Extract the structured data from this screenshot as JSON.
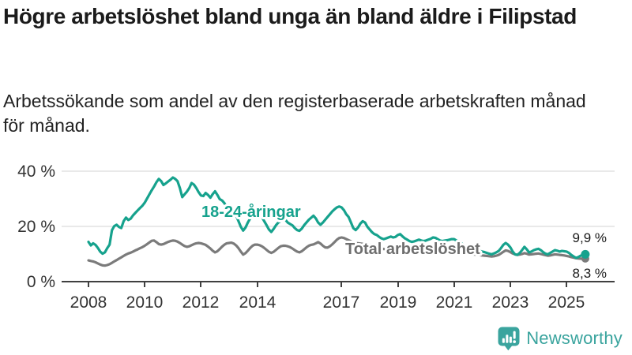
{
  "header": {
    "title": "Högre arbetslöshet bland unga än bland äldre i Filipstad",
    "subtitle": "Arbetssökande som andel av den registerbaserade arbetskraften månad för månad."
  },
  "chart_data": {
    "type": "line",
    "title": "Högre arbetslöshet bland unga än bland äldre i Filipstad",
    "xlabel": "",
    "ylabel": "",
    "x_unit": "month",
    "x_range": [
      "2008-01",
      "2025-09"
    ],
    "points_per_year": 12,
    "x_ticks": [
      "2008",
      "2010",
      "2012",
      "2014",
      "2017",
      "2019",
      "2021",
      "2023",
      "2025"
    ],
    "y_ticks": [
      {
        "value": 0,
        "label": "0 %"
      },
      {
        "value": 20,
        "label": "20 %"
      },
      {
        "value": 40,
        "label": "40 %"
      }
    ],
    "ylim": [
      0,
      42
    ],
    "grid": "horizontal",
    "gridline_color": "#e2e2e2",
    "axis_color": "#404040",
    "series": [
      {
        "name": "18-24-åringar",
        "color": "#16a28d",
        "end_label": "9,9 %",
        "end_value": 9.9,
        "values": [
          14.4,
          13.1,
          13.9,
          13.3,
          12.2,
          10.9,
          10.1,
          10.6,
          12.1,
          13.4,
          18.6,
          20.1,
          20.6,
          19.8,
          19.4,
          21.9,
          23.2,
          22.3,
          22.8,
          24.0,
          24.9,
          25.8,
          26.7,
          27.5,
          28.6,
          30.1,
          31.6,
          33.1,
          34.5,
          36.0,
          37.2,
          36.4,
          35.0,
          35.6,
          36.3,
          36.9,
          37.7,
          37.2,
          36.4,
          33.9,
          30.6,
          31.6,
          32.6,
          33.9,
          35.7,
          35.1,
          33.9,
          32.4,
          31.2,
          31.0,
          32.1,
          31.4,
          30.4,
          31.7,
          32.7,
          31.4,
          29.9,
          29.4,
          28.4,
          27.1,
          27.4,
          26.4,
          25.4,
          23.9,
          21.9,
          19.9,
          18.5,
          19.6,
          21.4,
          22.9,
          23.9,
          24.4,
          24.9,
          24.4,
          23.4,
          21.9,
          20.4,
          18.9,
          18.0,
          19.1,
          20.4,
          21.4,
          21.9,
          22.2,
          22.4,
          21.4,
          20.9,
          20.4,
          19.4,
          18.7,
          18.4,
          19.2,
          20.4,
          21.4,
          22.4,
          23.1,
          23.9,
          22.9,
          21.4,
          20.6,
          21.4,
          22.4,
          23.4,
          24.4,
          25.4,
          26.2,
          26.9,
          27.2,
          26.9,
          25.9,
          24.4,
          23.4,
          21.4,
          19.4,
          18.7,
          19.6,
          21.0,
          21.9,
          21.4,
          19.9,
          18.9,
          17.9,
          17.2,
          16.9,
          16.2,
          15.7,
          15.4,
          15.7,
          16.0,
          16.3,
          16.0,
          16.2,
          16.9,
          17.2,
          16.4,
          15.7,
          15.2,
          14.7,
          14.4,
          14.6,
          14.9,
          15.2,
          14.9,
          14.7,
          14.9,
          15.2,
          15.5,
          16.0,
          15.9,
          15.4,
          14.9,
          14.7,
          14.9,
          15.0,
          15.2,
          15.4,
          15.4,
          14.9,
          14.4,
          13.9,
          13.4,
          12.9,
          12.4,
          12.1,
          11.9,
          11.7,
          11.4,
          11.1,
          10.9,
          10.7,
          10.4,
          10.1,
          9.9,
          10.2,
          10.6,
          11.1,
          12.1,
          13.3,
          14.0,
          13.4,
          12.4,
          10.9,
          9.9,
          9.7,
          10.4,
          11.4,
          12.6,
          11.7,
          10.6,
          10.9,
          11.4,
          11.7,
          11.9,
          11.4,
          10.7,
          10.1,
          9.9,
          10.4,
          10.9,
          11.4,
          11.2,
          10.9,
          11.1,
          11.0,
          10.9,
          10.4,
          9.7,
          9.1,
          8.6,
          8.9,
          9.4,
          9.7,
          9.9
        ]
      },
      {
        "name": "Total arbetslöshet",
        "color": "#7b7b7b",
        "label_color": "#6e6e6e",
        "end_label": "8,3 %",
        "end_value": 8.3,
        "values": [
          7.7,
          7.5,
          7.3,
          7.0,
          6.6,
          6.2,
          5.9,
          5.8,
          6.0,
          6.3,
          6.8,
          7.3,
          7.8,
          8.3,
          8.8,
          9.3,
          9.8,
          10.2,
          10.5,
          10.9,
          11.3,
          11.7,
          12.1,
          12.5,
          13.0,
          13.6,
          14.2,
          14.8,
          14.9,
          14.3,
          13.6,
          13.4,
          13.6,
          14.0,
          14.4,
          14.7,
          14.9,
          14.8,
          14.5,
          14.0,
          13.4,
          12.9,
          12.6,
          12.8,
          13.2,
          13.6,
          13.9,
          14.0,
          13.9,
          13.6,
          13.3,
          12.7,
          12.0,
          11.2,
          10.6,
          11.0,
          11.8,
          12.7,
          13.4,
          13.9,
          14.0,
          14.1,
          13.8,
          13.1,
          12.1,
          10.9,
          9.8,
          10.3,
          11.2,
          12.2,
          13.0,
          13.4,
          13.4,
          13.2,
          12.8,
          12.2,
          11.5,
          10.8,
          10.4,
          10.8,
          11.5,
          12.2,
          12.8,
          13.0,
          13.0,
          12.8,
          12.5,
          12.0,
          11.4,
          10.9,
          10.6,
          11.0,
          11.7,
          12.4,
          13.0,
          13.3,
          13.5,
          13.9,
          14.3,
          13.8,
          13.0,
          12.4,
          12.3,
          12.8,
          13.5,
          14.3,
          15.2,
          15.8,
          16.0,
          15.8,
          15.4,
          15.0,
          14.6,
          14.2,
          14.0,
          13.9,
          13.8,
          13.7,
          13.5,
          13.4,
          13.3,
          13.1,
          12.9,
          12.6,
          12.3,
          12.0,
          11.8,
          11.7,
          11.6,
          11.6,
          11.5,
          11.5,
          11.6,
          11.5,
          11.3,
          11.1,
          10.9,
          10.8,
          10.7,
          10.8,
          10.9,
          11.0,
          11.0,
          11.1,
          11.3,
          11.5,
          11.8,
          12.3,
          12.5,
          12.4,
          12.2,
          12.0,
          11.8,
          11.6,
          11.5,
          11.4,
          11.3,
          11.2,
          11.0,
          10.8,
          10.6,
          10.4,
          10.2,
          10.0,
          9.9,
          9.8,
          9.7,
          9.6,
          9.5,
          9.4,
          9.3,
          9.2,
          9.1,
          9.2,
          9.4,
          9.7,
          10.2,
          10.8,
          11.3,
          11.1,
          10.7,
          10.2,
          9.9,
          9.7,
          9.8,
          10.0,
          10.3,
          10.1,
          9.8,
          9.9,
          10.0,
          10.1,
          10.2,
          10.0,
          9.8,
          9.6,
          9.4,
          9.5,
          9.7,
          9.9,
          9.8,
          9.7,
          9.6,
          9.5,
          9.3,
          9.1,
          8.9,
          8.7,
          8.5,
          8.4,
          8.3,
          8.3,
          8.3
        ]
      }
    ]
  },
  "branding": {
    "logo_text": "Newsworthy",
    "color": "#3aa49e"
  }
}
